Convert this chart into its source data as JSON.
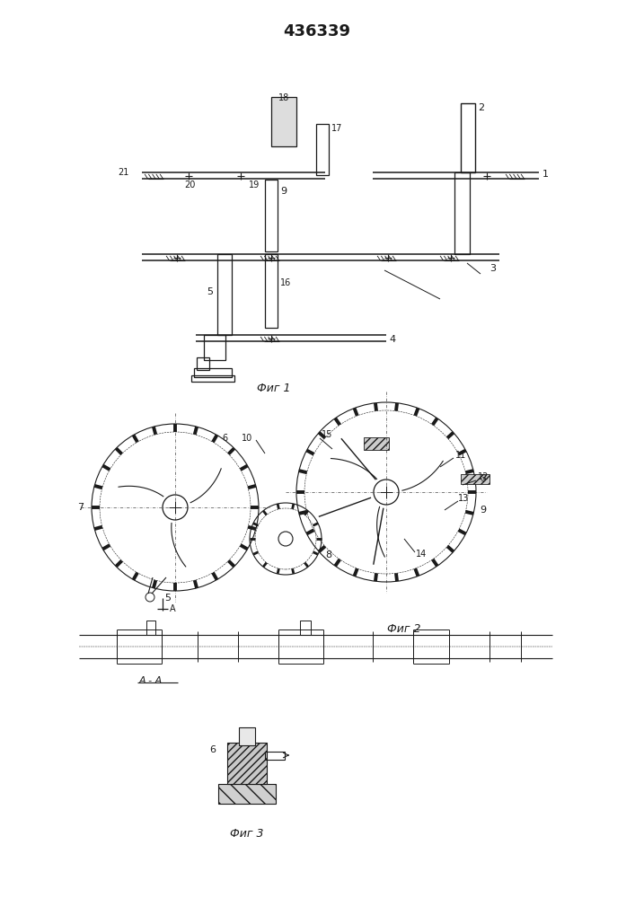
{
  "title": "436339",
  "title_fontsize": 13,
  "fig1_caption": "Фиг 1",
  "fig2_caption": "Фиг 2",
  "fig3_caption": "Фиг 3",
  "aa_label": "А - А",
  "bg_color": "#ffffff",
  "line_color": "#1a1a1a"
}
